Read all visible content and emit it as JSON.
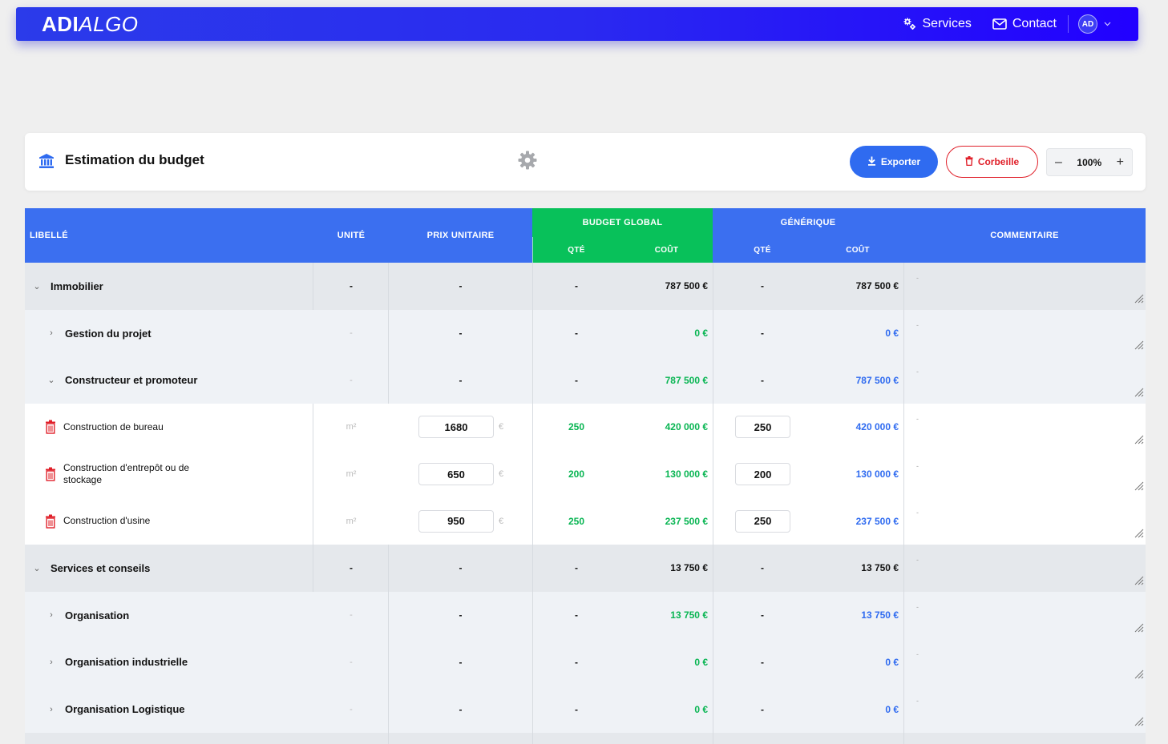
{
  "navbar": {
    "logo_bold": "ADI",
    "logo_italic": "ALGO",
    "services_label": "Services",
    "contact_label": "Contact",
    "avatar_initials": "AD",
    "icons": [
      "gears-icon",
      "envelope-icon",
      "chevron-down-icon"
    ]
  },
  "header": {
    "title": "Estimation du budget",
    "export_label": "Exporter",
    "trash_label": "Corbeille",
    "zoom_value": "100%",
    "zoom_minus": "–",
    "zoom_plus": "+"
  },
  "colors": {
    "primary": "#2f6bf0",
    "green": "#08c15a",
    "danger": "#e0202a",
    "navbar": "#2200ff"
  },
  "table": {
    "headers": {
      "libelle": "LIBELLÉ",
      "unite": "UNITÉ",
      "prix": "PRIX UNITAIRE",
      "budget_global": "BUDGET GLOBAL",
      "generique": "GÉNÉRIQUE",
      "qte": "QTÉ",
      "cout": "COÛT",
      "commentaire": "COMMENTAIRE"
    },
    "rows": [
      {
        "kind": "cat",
        "label": "Immobilier",
        "unit": "-",
        "price": "-",
        "bg_qty": "-",
        "bg_cost": "787 500 €",
        "gen_qty": "-",
        "gen_cost": "787 500 €",
        "comment": "-"
      },
      {
        "kind": "sub",
        "label": "Gestion du projet",
        "unit": "-",
        "price": "-",
        "bg_qty": "-",
        "bg_cost": "0 €",
        "gen_qty": "-",
        "gen_cost": "0 €",
        "comment": "-"
      },
      {
        "kind": "sub",
        "label": "Constructeur et promoteur",
        "unit": "-",
        "price": "-",
        "bg_qty": "-",
        "bg_cost": "787 500 €",
        "gen_qty": "-",
        "gen_cost": "787 500 €",
        "comment": "-"
      },
      {
        "kind": "item",
        "label": "Construction de bureau",
        "unit": "m²",
        "price": "1680",
        "currency": "€",
        "bg_qty": "250",
        "bg_cost": "420 000 €",
        "gen_qty": "250",
        "gen_cost": "420 000 €",
        "comment": "-"
      },
      {
        "kind": "item",
        "label": "Construction d'entrepôt ou de stockage",
        "unit": "m²",
        "price": "650",
        "currency": "€",
        "bg_qty": "200",
        "bg_cost": "130 000 €",
        "gen_qty": "200",
        "gen_cost": "130 000 €",
        "comment": "-"
      },
      {
        "kind": "item",
        "label": "Construction d'usine",
        "unit": "m²",
        "price": "950",
        "currency": "€",
        "bg_qty": "250",
        "bg_cost": "237 500 €",
        "gen_qty": "250",
        "gen_cost": "237 500 €",
        "comment": "-"
      },
      {
        "kind": "cat",
        "label": "Services et conseils",
        "unit": "-",
        "price": "-",
        "bg_qty": "-",
        "bg_cost": "13 750 €",
        "gen_qty": "-",
        "gen_cost": "13 750 €",
        "comment": "-"
      },
      {
        "kind": "sub",
        "label": "Organisation",
        "unit": "-",
        "price": "-",
        "bg_qty": "-",
        "bg_cost": "13 750 €",
        "gen_qty": "-",
        "gen_cost": "13 750 €",
        "comment": "-"
      },
      {
        "kind": "sub",
        "label": "Organisation industrielle",
        "unit": "-",
        "price": "-",
        "bg_qty": "-",
        "bg_cost": "0 €",
        "gen_qty": "-",
        "gen_cost": "0 €",
        "comment": "-"
      },
      {
        "kind": "sub",
        "label": "Organisation Logistique",
        "unit": "-",
        "price": "-",
        "bg_qty": "-",
        "bg_cost": "0 €",
        "gen_qty": "-",
        "gen_cost": "0 €",
        "comment": "-"
      }
    ]
  }
}
